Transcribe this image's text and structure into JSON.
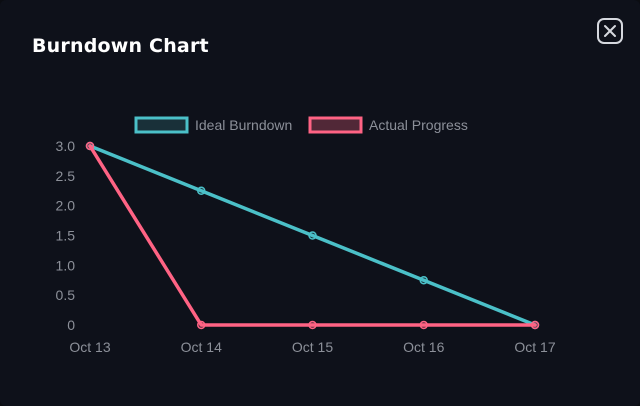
{
  "modal": {
    "title": "Burndown Chart"
  },
  "close_icon": "close-icon",
  "colors": {
    "ideal": "#4bc0c8",
    "actual": "#ff6384",
    "grid": "#1c2030",
    "text": "#8c9099"
  },
  "chart_data": {
    "type": "line",
    "categories": [
      "Oct 13",
      "Oct 14",
      "Oct 15",
      "Oct 16",
      "Oct 17"
    ],
    "series": [
      {
        "name": "Ideal Burndown",
        "values": [
          3.0,
          2.25,
          1.5,
          0.75,
          0
        ]
      },
      {
        "name": "Actual Progress",
        "values": [
          3.0,
          0,
          0,
          0,
          0
        ]
      }
    ],
    "ylim": [
      0,
      3
    ],
    "yticks": [
      "0",
      "0.5",
      "1.0",
      "1.5",
      "2.0",
      "2.5",
      "3.0"
    ],
    "legend_position": "top-center",
    "grid": false
  }
}
